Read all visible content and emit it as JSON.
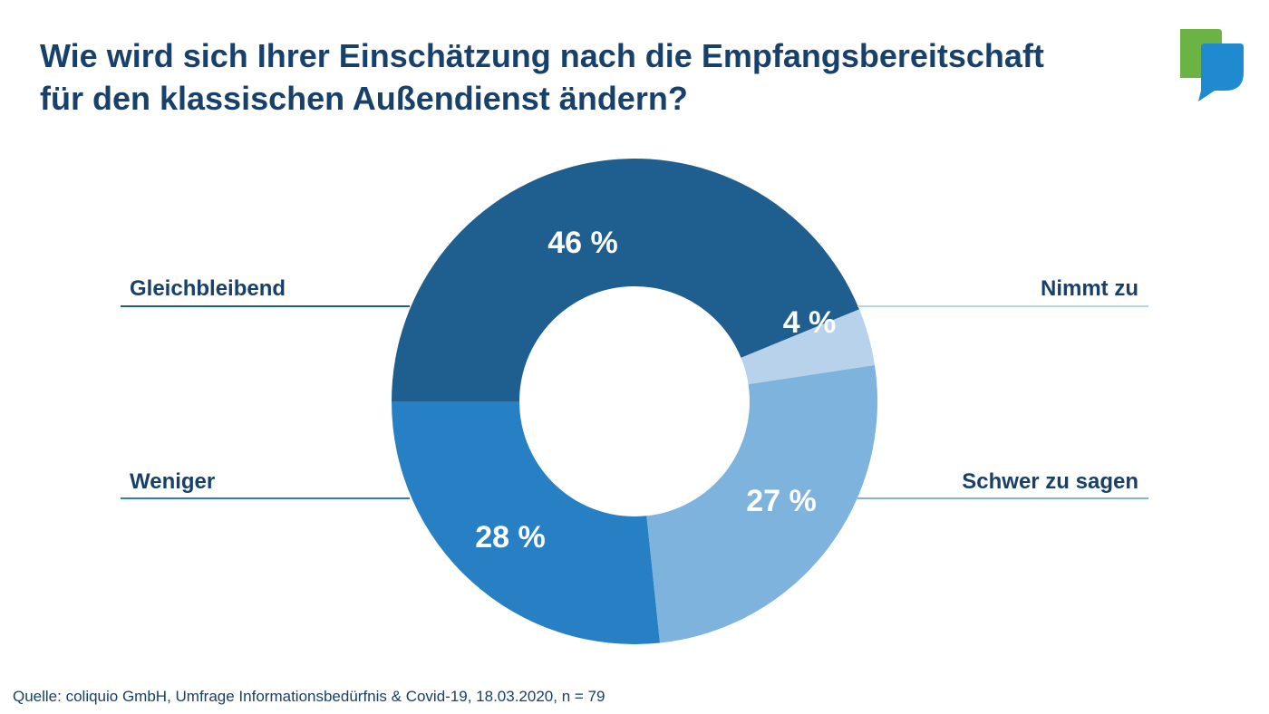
{
  "title_lines": [
    "Wie wird sich Ihrer Einschätzung nach die Empfangsbereitschaft",
    "für den klassischen Außendienst ändern?"
  ],
  "source": "Quelle: coliquio GmbH, Umfrage Informationsbedürfnis & Covid-19, 18.03.2020, n = 79",
  "logo": {
    "icon": "speech-bubbles-logo-icon",
    "colors": {
      "green": "#6ab344",
      "blue": "#1f8ad0"
    }
  },
  "chart_data": {
    "type": "pie",
    "donut": true,
    "unit": "%",
    "start": "9 o'clock, clockwise",
    "slices": [
      {
        "name": "Gleichbleibend",
        "value": 46,
        "label": "46 %",
        "color": "#1f5f90",
        "side": "left"
      },
      {
        "name": "Nimmt zu",
        "value": 4,
        "label": "4 %",
        "color": "#b7d2ea",
        "side": "right"
      },
      {
        "name": "Schwer zu sagen",
        "value": 27,
        "label": "27 %",
        "color": "#7db3dc",
        "side": "right"
      },
      {
        "name": "Weniger",
        "value": 28,
        "label": "28 %",
        "color": "#2780c4",
        "side": "left"
      }
    ]
  }
}
